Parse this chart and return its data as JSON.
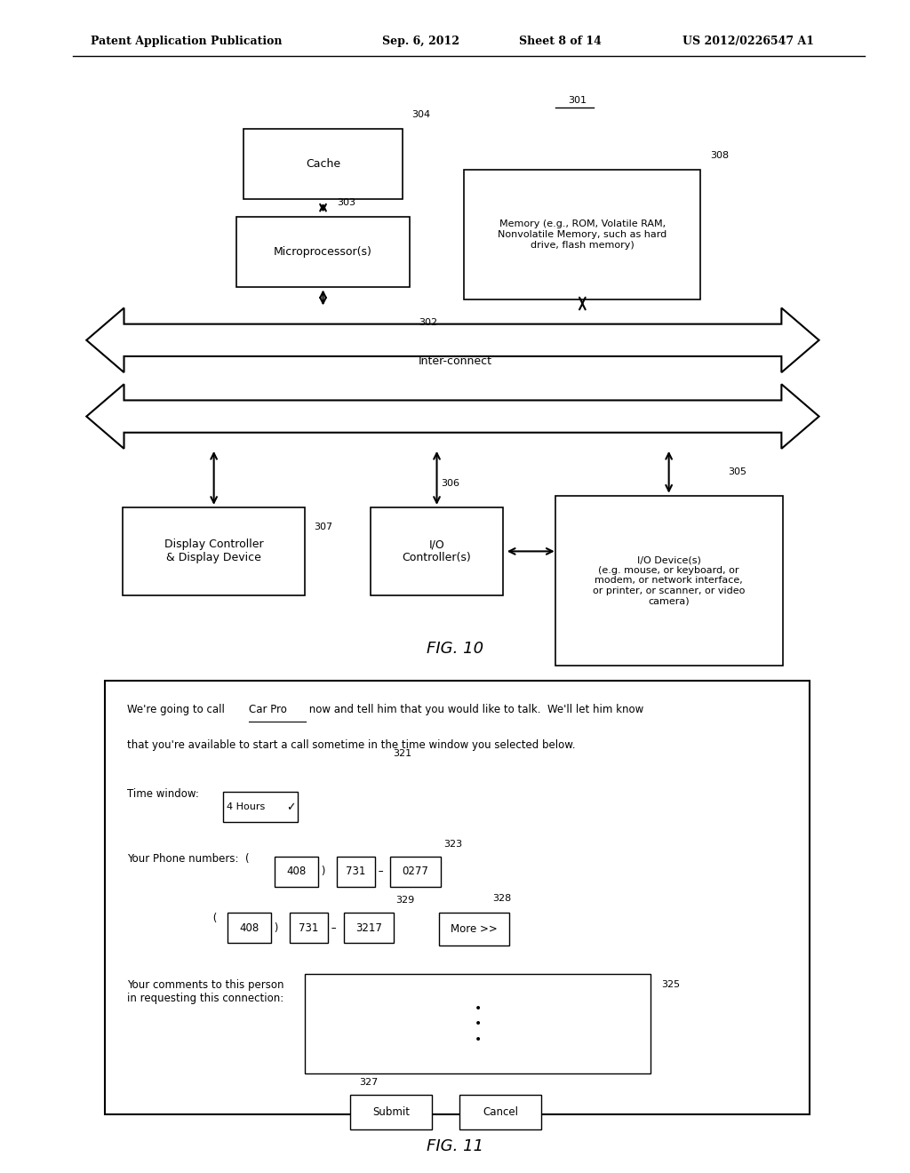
{
  "bg_color": "#ffffff",
  "header_text": "Patent Application Publication",
  "header_date": "Sep. 6, 2012",
  "header_sheet": "Sheet 8 of 14",
  "header_patent": "US 2012/0226547 A1",
  "fig10_label": "FIG. 10",
  "fig11_label": "FIG. 11",
  "fig10": {
    "cache_label": "Cache",
    "cache_ref": "304",
    "micro_label": "Microprocessor(s)",
    "micro_ref": "303",
    "memory_label": "Memory (e.g., ROM, Volatile RAM,\nNonvolatile Memory, such as hard\ndrive, flash memory)",
    "memory_ref": "308",
    "interconnect_label": "Inter-connect",
    "interconnect_ref": "302",
    "system_ref": "301",
    "display_label": "Display Controller\n& Display Device",
    "display_ref": "307",
    "io_ctrl_label": "I/O\nController(s)",
    "io_ctrl_ref": "306",
    "io_dev_label": "I/O Device(s)\n(e.g. mouse, or keyboard, or\nmodem, or network interface,\nor printer, or scanner, or video\ncamera)",
    "io_dev_ref": "305"
  },
  "fig11": {
    "text_intro_part1": "We're going to call ",
    "text_car_pro": "Car Pro",
    "text_intro_part2": " now and tell him that you would like to talk.  We'll let him know",
    "text_intro_line2": "that you're available to start a call sometime in the time window you selected below.",
    "time_window_label": "Time window:",
    "time_window_value": "4 Hours",
    "time_window_ref": "321",
    "phone_label": "Your Phone numbers:",
    "phone1_area": "408",
    "phone1_prefix": "731",
    "phone1_num": "0277",
    "phone1_ref": "323",
    "phone2_area": "408",
    "phone2_prefix": "731",
    "phone2_num": "3217",
    "phone2_ref": "329",
    "more_btn": "More >>",
    "more_ref": "328",
    "comments_label": "Your comments to this person\nin requesting this connection:",
    "comments_ref": "325",
    "submit_btn": "Submit",
    "cancel_btn": "Cancel",
    "buttons_ref": "327"
  }
}
